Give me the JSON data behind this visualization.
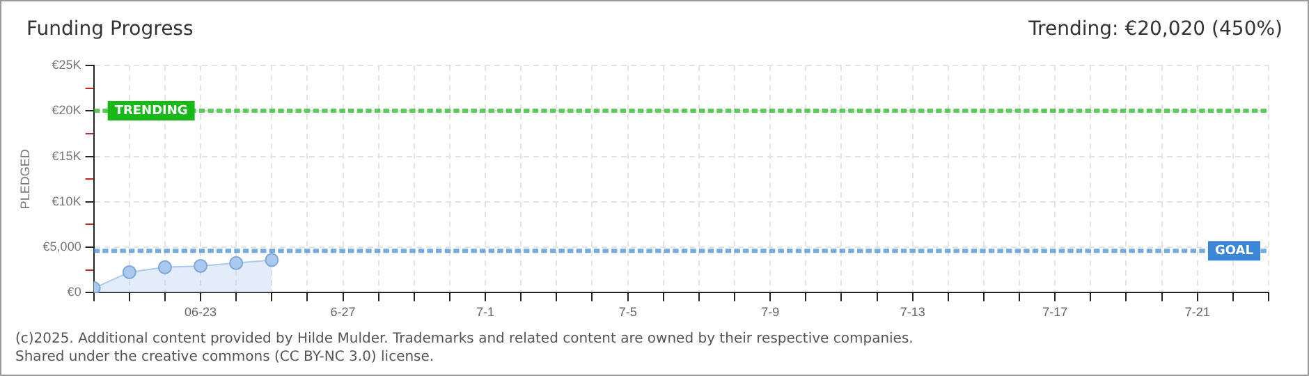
{
  "chart_data": {
    "type": "area",
    "title": "Funding Progress",
    "subtitle": "Trending: €20,020 (450%)",
    "ylabel": "PLEDGED",
    "x": [
      "--06-20",
      "--06-21",
      "--06-22",
      "--06-23",
      "--06-24",
      "--06-25"
    ],
    "series": [
      {
        "color": "#a9c9ee",
        "values": [
          500,
          2260,
          2800,
          2950,
          3260,
          3600
        ]
      }
    ],
    "xlim": [
      "--06-20",
      "--07-23"
    ],
    "xticks": [
      {
        "value": "--06-20",
        "label": null
      },
      {
        "value": "--06-21",
        "label": null
      },
      {
        "value": "--06-22",
        "label": null
      },
      {
        "value": "--06-23",
        "label": "06-23"
      },
      {
        "value": "--06-24",
        "label": null
      },
      {
        "value": "--06-25",
        "label": null
      },
      {
        "value": "--06-26",
        "label": null
      },
      {
        "value": "--06-27",
        "label": "6-27"
      },
      {
        "value": "--06-28",
        "label": null
      },
      {
        "value": "--06-29",
        "label": null
      },
      {
        "value": "--06-30",
        "label": null
      },
      {
        "value": "--07-01",
        "label": "7-1"
      },
      {
        "value": "--07-02",
        "label": null
      },
      {
        "value": "--07-03",
        "label": null
      },
      {
        "value": "--07-04",
        "label": null
      },
      {
        "value": "--07-05",
        "label": "7-5"
      },
      {
        "value": "--07-06",
        "label": null
      },
      {
        "value": "--07-07",
        "label": null
      },
      {
        "value": "--07-08",
        "label": null
      },
      {
        "value": "--07-09",
        "label": "7-9"
      },
      {
        "value": "--07-10",
        "label": null
      },
      {
        "value": "--07-11",
        "label": null
      },
      {
        "value": "--07-12",
        "label": null
      },
      {
        "value": "--07-13",
        "label": "7-13"
      },
      {
        "value": "--07-14",
        "label": null
      },
      {
        "value": "--07-15",
        "label": null
      },
      {
        "value": "--07-16",
        "label": null
      },
      {
        "value": "--07-17",
        "label": "7-17"
      },
      {
        "value": "--07-18",
        "label": null
      },
      {
        "value": "--07-19",
        "label": null
      },
      {
        "value": "--07-20",
        "label": null
      },
      {
        "value": "--07-21",
        "label": "7-21"
      },
      {
        "value": "--07-22",
        "label": null
      },
      {
        "value": "--07-23",
        "label": null
      }
    ],
    "ylim": [
      0,
      25000
    ],
    "yticks": [
      {
        "value": 0,
        "label": "€0"
      },
      {
        "value": 2500,
        "label": null
      },
      {
        "value": 5000,
        "label": "€5,000"
      },
      {
        "value": 7500,
        "label": null
      },
      {
        "value": 10000,
        "label": "€10K"
      },
      {
        "value": 12500,
        "label": null
      },
      {
        "value": 15000,
        "label": "€15K"
      },
      {
        "value": 17500,
        "label": null
      },
      {
        "value": 20000,
        "label": "€20K"
      },
      {
        "value": 22500,
        "label": null
      },
      {
        "value": 25000,
        "label": "€25K"
      }
    ],
    "ref_lines": [
      {
        "axis": "y",
        "value": 20020,
        "label": "TRENDING",
        "color": "#19b819",
        "line_style": "dashed"
      },
      {
        "axis": "y",
        "value": 4600,
        "label": "GOAL",
        "color": "#3b86d6",
        "line_style": "dashed"
      }
    ],
    "annotations": [
      "(c)2025. Additional content provided by Hilde Mulder. Trademarks and related content are owned by their respective companies.",
      "Shared under the creative commons (CC BY-NC 3.0) license."
    ],
    "grid": true,
    "legend": false,
    "marker": "circle",
    "line_style": "solid"
  }
}
